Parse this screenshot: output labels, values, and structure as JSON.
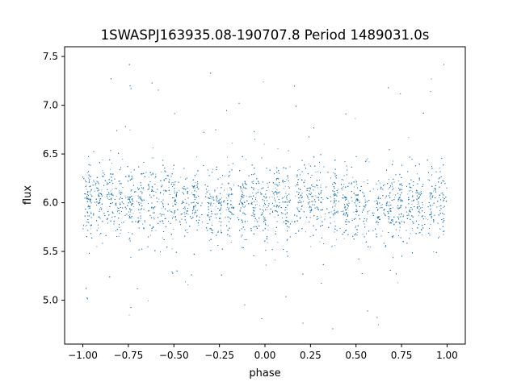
{
  "chart_data": {
    "type": "scatter",
    "title": "1SWASPJ163935.08-190707.8 Period 1489031.0s",
    "xlabel": "phase",
    "ylabel": "flux",
    "xlim": [
      -1.1,
      1.1
    ],
    "ylim": [
      4.55,
      7.6
    ],
    "xticks": [
      -1.0,
      -0.75,
      -0.5,
      -0.25,
      0.0,
      0.25,
      0.5,
      0.75,
      1.0
    ],
    "xtick_labels": [
      "−1.00",
      "−0.75",
      "−0.50",
      "−0.25",
      "0.00",
      "0.25",
      "0.50",
      "0.75",
      "1.00"
    ],
    "yticks": [
      5.0,
      5.5,
      6.0,
      6.5,
      7.0,
      7.5
    ],
    "ytick_labels": [
      "5.0",
      "5.5",
      "6.0",
      "6.5",
      "7.0",
      "7.5"
    ],
    "grid": false,
    "legend": "none",
    "point_color": "#1f77b4",
    "series": [
      {
        "phase_range": [
          -1.0,
          1.0
        ],
        "center_flux": 6.0,
        "typical_spread": 0.18,
        "outlier_min": 4.7,
        "outlier_max": 7.45,
        "dense_columns": [
          -0.97,
          -0.91,
          -0.85,
          -0.8,
          -0.74,
          -0.68,
          -0.62,
          -0.55,
          -0.5,
          -0.44,
          -0.38,
          -0.3,
          -0.25,
          -0.19,
          -0.12,
          -0.06,
          0.0,
          0.06,
          0.12,
          0.19,
          0.25,
          0.3,
          0.38,
          0.44,
          0.5,
          0.55,
          0.62,
          0.68,
          0.74,
          0.8,
          0.85,
          0.91,
          0.97
        ],
        "approx_point_count": 9000
      }
    ]
  }
}
